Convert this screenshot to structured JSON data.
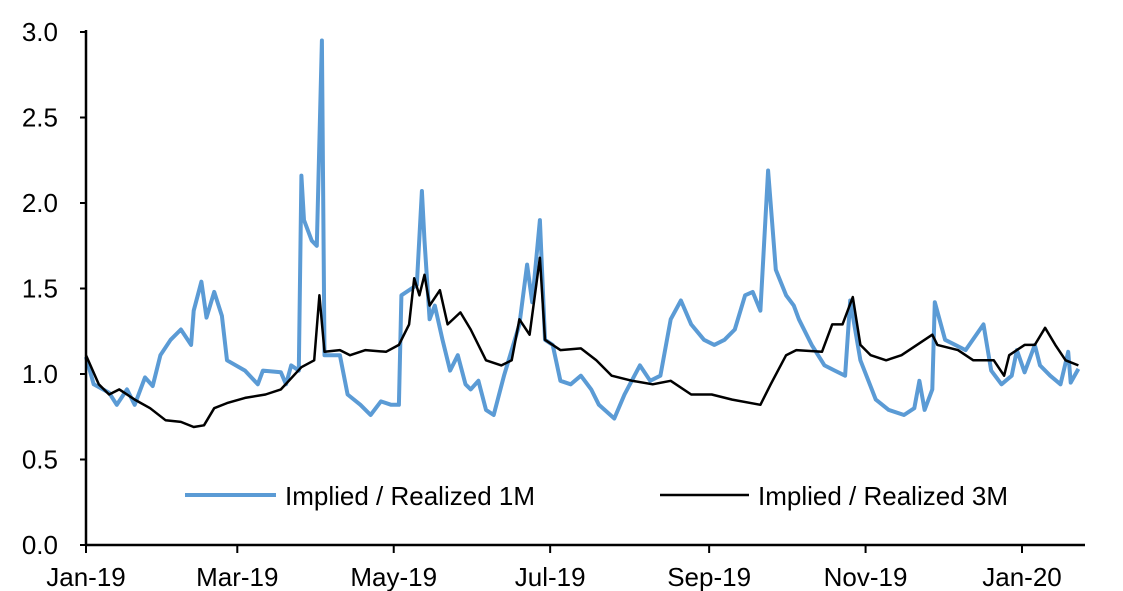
{
  "chart_data": {
    "type": "line",
    "title": "",
    "xlabel": "",
    "ylabel": "",
    "ylim": [
      0,
      3.0
    ],
    "xlim": [
      "2019-01-01",
      "2020-01-24"
    ],
    "yticks": [
      "0.0",
      "0.5",
      "1.0",
      "1.5",
      "2.0",
      "2.5",
      "3.0"
    ],
    "xticks": [
      {
        "date": "2019-01-01",
        "label": "Jan-19"
      },
      {
        "date": "2019-03-01",
        "label": "Mar-19"
      },
      {
        "date": "2019-05-01",
        "label": "May-19"
      },
      {
        "date": "2019-07-01",
        "label": "Jul-19"
      },
      {
        "date": "2019-09-01",
        "label": "Sep-19"
      },
      {
        "date": "2019-11-01",
        "label": "Nov-19"
      },
      {
        "date": "2020-01-01",
        "label": "Jan-20"
      }
    ],
    "grid": false,
    "legend_position": "bottom-center",
    "series": [
      {
        "name": "Implied / Realized 1M",
        "color": "#5b9bd5",
        "points": [
          [
            "2019-01-01",
            1.1
          ],
          [
            "2019-01-04",
            0.94
          ],
          [
            "2019-01-10",
            0.89
          ],
          [
            "2019-01-13",
            0.82
          ],
          [
            "2019-01-17",
            0.91
          ],
          [
            "2019-01-20",
            0.82
          ],
          [
            "2019-01-24",
            0.98
          ],
          [
            "2019-01-27",
            0.93
          ],
          [
            "2019-01-30",
            1.11
          ],
          [
            "2019-02-03",
            1.2
          ],
          [
            "2019-02-07",
            1.26
          ],
          [
            "2019-02-11",
            1.17
          ],
          [
            "2019-02-12",
            1.37
          ],
          [
            "2019-02-15",
            1.54
          ],
          [
            "2019-02-17",
            1.33
          ],
          [
            "2019-02-20",
            1.48
          ],
          [
            "2019-02-23",
            1.34
          ],
          [
            "2019-02-25",
            1.08
          ],
          [
            "2019-03-04",
            1.02
          ],
          [
            "2019-03-09",
            0.94
          ],
          [
            "2019-03-11",
            1.02
          ],
          [
            "2019-03-18",
            1.01
          ],
          [
            "2019-03-20",
            0.94
          ],
          [
            "2019-03-22",
            1.05
          ],
          [
            "2019-03-25",
            1.02
          ],
          [
            "2019-03-26",
            2.16
          ],
          [
            "2019-03-27",
            1.9
          ],
          [
            "2019-03-30",
            1.78
          ],
          [
            "2019-04-01",
            1.75
          ],
          [
            "2019-04-03",
            2.95
          ],
          [
            "2019-04-04",
            1.11
          ],
          [
            "2019-04-10",
            1.11
          ],
          [
            "2019-04-13",
            0.88
          ],
          [
            "2019-04-18",
            0.82
          ],
          [
            "2019-04-22",
            0.76
          ],
          [
            "2019-04-26",
            0.84
          ],
          [
            "2019-04-30",
            0.82
          ],
          [
            "2019-05-03",
            0.82
          ],
          [
            "2019-05-04",
            1.46
          ],
          [
            "2019-05-07",
            1.49
          ],
          [
            "2019-05-10",
            1.52
          ],
          [
            "2019-05-12",
            2.07
          ],
          [
            "2019-05-13",
            1.78
          ],
          [
            "2019-05-15",
            1.32
          ],
          [
            "2019-05-17",
            1.4
          ],
          [
            "2019-05-20",
            1.2
          ],
          [
            "2019-05-23",
            1.02
          ],
          [
            "2019-05-26",
            1.11
          ],
          [
            "2019-05-29",
            0.94
          ],
          [
            "2019-05-31",
            0.91
          ],
          [
            "2019-06-03",
            0.96
          ],
          [
            "2019-06-06",
            0.79
          ],
          [
            "2019-06-09",
            0.76
          ],
          [
            "2019-06-13",
            0.99
          ],
          [
            "2019-06-19",
            1.29
          ],
          [
            "2019-06-22",
            1.64
          ],
          [
            "2019-06-24",
            1.42
          ],
          [
            "2019-06-27",
            1.9
          ],
          [
            "2019-06-29",
            1.2
          ],
          [
            "2019-07-02",
            1.17
          ],
          [
            "2019-07-05",
            0.96
          ],
          [
            "2019-07-09",
            0.94
          ],
          [
            "2019-07-13",
            0.99
          ],
          [
            "2019-07-17",
            0.91
          ],
          [
            "2019-07-20",
            0.82
          ],
          [
            "2019-07-26",
            0.74
          ],
          [
            "2019-07-30",
            0.88
          ],
          [
            "2019-08-05",
            1.05
          ],
          [
            "2019-08-09",
            0.96
          ],
          [
            "2019-08-13",
            0.99
          ],
          [
            "2019-08-17",
            1.32
          ],
          [
            "2019-08-21",
            1.43
          ],
          [
            "2019-08-25",
            1.29
          ],
          [
            "2019-08-30",
            1.2
          ],
          [
            "2019-09-03",
            1.17
          ],
          [
            "2019-09-07",
            1.2
          ],
          [
            "2019-09-11",
            1.26
          ],
          [
            "2019-09-15",
            1.46
          ],
          [
            "2019-09-18",
            1.48
          ],
          [
            "2019-09-21",
            1.37
          ],
          [
            "2019-09-24",
            2.19
          ],
          [
            "2019-09-27",
            1.61
          ],
          [
            "2019-10-01",
            1.46
          ],
          [
            "2019-10-04",
            1.4
          ],
          [
            "2019-10-06",
            1.32
          ],
          [
            "2019-10-11",
            1.17
          ],
          [
            "2019-10-16",
            1.05
          ],
          [
            "2019-10-20",
            1.02
          ],
          [
            "2019-10-24",
            0.99
          ],
          [
            "2019-10-26",
            1.43
          ],
          [
            "2019-10-30",
            1.08
          ],
          [
            "2019-11-05",
            0.85
          ],
          [
            "2019-11-10",
            0.79
          ],
          [
            "2019-11-16",
            0.76
          ],
          [
            "2019-11-20",
            0.8
          ],
          [
            "2019-11-22",
            0.96
          ],
          [
            "2019-11-24",
            0.79
          ],
          [
            "2019-11-27",
            0.91
          ],
          [
            "2019-11-28",
            1.42
          ],
          [
            "2019-12-02",
            1.2
          ],
          [
            "2019-12-06",
            1.17
          ],
          [
            "2019-12-10",
            1.14
          ],
          [
            "2019-12-17",
            1.29
          ],
          [
            "2019-12-20",
            1.02
          ],
          [
            "2019-12-24",
            0.94
          ],
          [
            "2019-12-28",
            0.99
          ],
          [
            "2019-12-30",
            1.14
          ],
          [
            "2020-01-02",
            1.01
          ],
          [
            "2020-01-06",
            1.17
          ],
          [
            "2020-01-08",
            1.05
          ],
          [
            "2020-01-12",
            0.99
          ],
          [
            "2020-01-16",
            0.94
          ],
          [
            "2020-01-19",
            1.13
          ],
          [
            "2020-01-20",
            0.95
          ],
          [
            "2020-01-23",
            1.03
          ]
        ]
      },
      {
        "name": "Implied / Realized 3M",
        "color": "#000000",
        "points": [
          [
            "2019-01-01",
            1.11
          ],
          [
            "2019-01-06",
            0.94
          ],
          [
            "2019-01-10",
            0.88
          ],
          [
            "2019-01-14",
            0.91
          ],
          [
            "2019-01-20",
            0.85
          ],
          [
            "2019-01-26",
            0.8
          ],
          [
            "2019-02-01",
            0.73
          ],
          [
            "2019-02-07",
            0.72
          ],
          [
            "2019-02-12",
            0.69
          ],
          [
            "2019-02-16",
            0.7
          ],
          [
            "2019-02-20",
            0.8
          ],
          [
            "2019-02-25",
            0.83
          ],
          [
            "2019-03-04",
            0.86
          ],
          [
            "2019-03-12",
            0.88
          ],
          [
            "2019-03-18",
            0.91
          ],
          [
            "2019-03-26",
            1.04
          ],
          [
            "2019-03-31",
            1.08
          ],
          [
            "2019-04-02",
            1.46
          ],
          [
            "2019-04-04",
            1.13
          ],
          [
            "2019-04-10",
            1.14
          ],
          [
            "2019-04-14",
            1.11
          ],
          [
            "2019-04-20",
            1.14
          ],
          [
            "2019-04-28",
            1.13
          ],
          [
            "2019-05-03",
            1.17
          ],
          [
            "2019-05-07",
            1.29
          ],
          [
            "2019-05-09",
            1.56
          ],
          [
            "2019-05-11",
            1.46
          ],
          [
            "2019-05-13",
            1.58
          ],
          [
            "2019-05-15",
            1.4
          ],
          [
            "2019-05-19",
            1.49
          ],
          [
            "2019-05-22",
            1.29
          ],
          [
            "2019-05-27",
            1.36
          ],
          [
            "2019-05-31",
            1.26
          ],
          [
            "2019-06-06",
            1.08
          ],
          [
            "2019-06-12",
            1.05
          ],
          [
            "2019-06-16",
            1.08
          ],
          [
            "2019-06-19",
            1.32
          ],
          [
            "2019-06-23",
            1.23
          ],
          [
            "2019-06-27",
            1.68
          ],
          [
            "2019-06-29",
            1.2
          ],
          [
            "2019-07-05",
            1.14
          ],
          [
            "2019-07-13",
            1.15
          ],
          [
            "2019-07-19",
            1.08
          ],
          [
            "2019-07-25",
            0.99
          ],
          [
            "2019-08-02",
            0.96
          ],
          [
            "2019-08-10",
            0.94
          ],
          [
            "2019-08-17",
            0.96
          ],
          [
            "2019-08-25",
            0.88
          ],
          [
            "2019-09-02",
            0.88
          ],
          [
            "2019-09-10",
            0.85
          ],
          [
            "2019-09-21",
            0.82
          ],
          [
            "2019-09-25",
            0.94
          ],
          [
            "2019-10-01",
            1.11
          ],
          [
            "2019-10-05",
            1.14
          ],
          [
            "2019-10-15",
            1.13
          ],
          [
            "2019-10-19",
            1.29
          ],
          [
            "2019-10-23",
            1.29
          ],
          [
            "2019-10-27",
            1.45
          ],
          [
            "2019-10-30",
            1.17
          ],
          [
            "2019-11-03",
            1.11
          ],
          [
            "2019-11-09",
            1.08
          ],
          [
            "2019-11-15",
            1.11
          ],
          [
            "2019-11-21",
            1.17
          ],
          [
            "2019-11-27",
            1.23
          ],
          [
            "2019-11-29",
            1.17
          ],
          [
            "2019-12-07",
            1.14
          ],
          [
            "2019-12-13",
            1.08
          ],
          [
            "2019-12-21",
            1.08
          ],
          [
            "2019-12-25",
            0.99
          ],
          [
            "2019-12-27",
            1.11
          ],
          [
            "2020-01-02",
            1.17
          ],
          [
            "2020-01-06",
            1.17
          ],
          [
            "2020-01-10",
            1.27
          ],
          [
            "2020-01-14",
            1.17
          ],
          [
            "2020-01-18",
            1.08
          ],
          [
            "2020-01-23",
            1.05
          ]
        ]
      }
    ]
  }
}
